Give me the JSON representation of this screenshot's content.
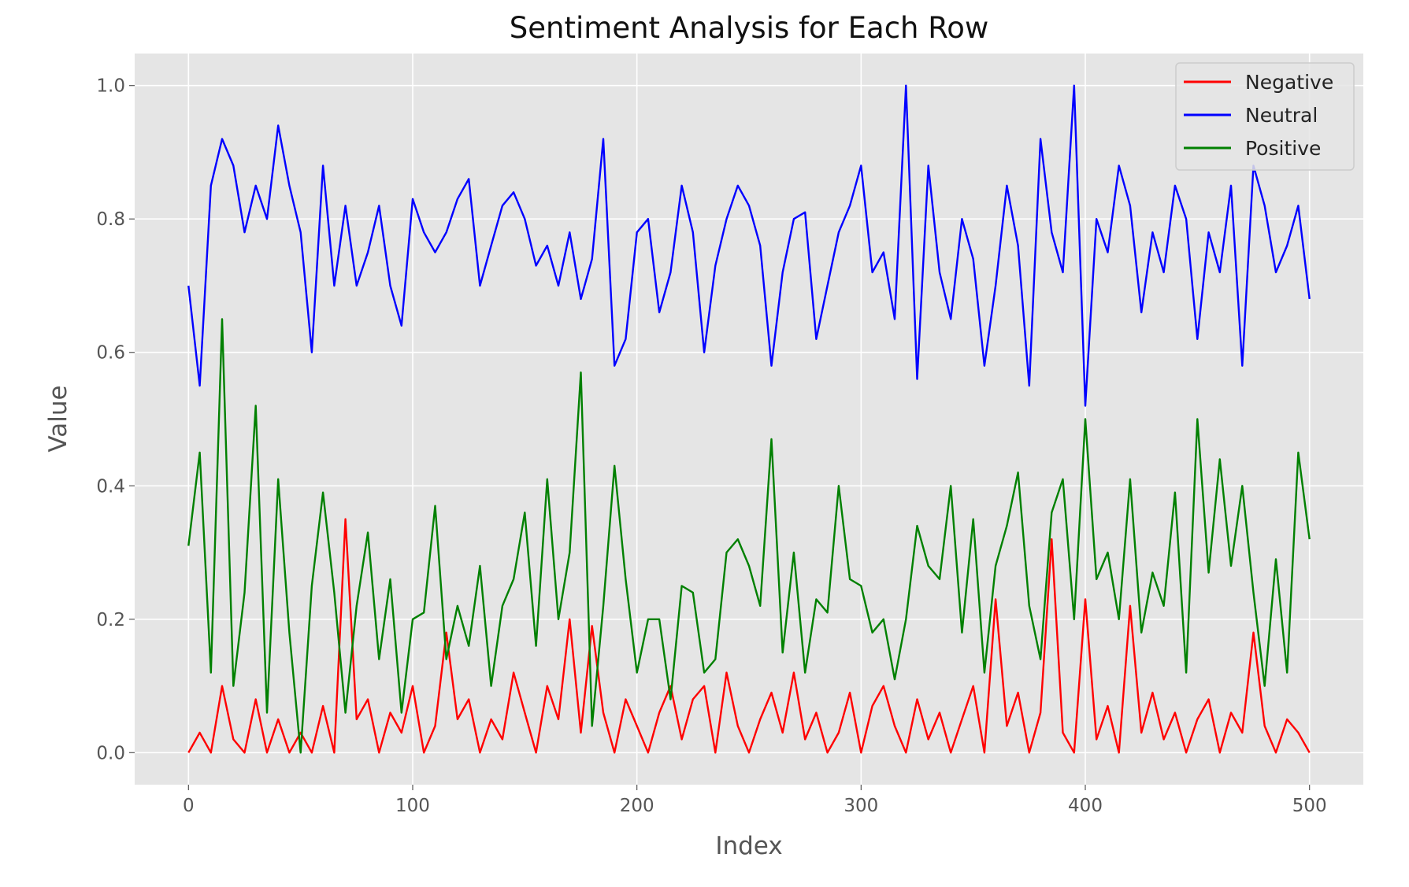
{
  "chart_data": {
    "type": "line",
    "title": "Sentiment Analysis for Each Row",
    "xlabel": "Index",
    "ylabel": "Value",
    "xlim": [
      -24,
      524
    ],
    "ylim": [
      -0.048,
      1.048
    ],
    "xticks": [
      0,
      100,
      200,
      300,
      400,
      500
    ],
    "yticks": [
      0.0,
      0.2,
      0.4,
      0.6,
      0.8,
      1.0
    ],
    "xtick_labels": [
      "0",
      "100",
      "200",
      "300",
      "400",
      "500"
    ],
    "ytick_labels": [
      "0.0",
      "0.2",
      "0.4",
      "0.6",
      "0.8",
      "1.0"
    ],
    "grid": true,
    "legend": "top-right",
    "x": {
      "start": 0,
      "step": 5
    },
    "series": [
      {
        "name": "Negative",
        "color": "#ff0000",
        "values": [
          0.0,
          0.03,
          0.0,
          0.1,
          0.02,
          0.0,
          0.08,
          0.0,
          0.05,
          0.0,
          0.03,
          0.0,
          0.07,
          0.0,
          0.35,
          0.05,
          0.08,
          0.0,
          0.06,
          0.03,
          0.1,
          0.0,
          0.04,
          0.18,
          0.05,
          0.08,
          0.0,
          0.05,
          0.02,
          0.12,
          0.06,
          0.0,
          0.1,
          0.05,
          0.2,
          0.03,
          0.19,
          0.06,
          0.0,
          0.08,
          0.04,
          0.0,
          0.06,
          0.1,
          0.02,
          0.08,
          0.1,
          0.0,
          0.12,
          0.04,
          0.0,
          0.05,
          0.09,
          0.03,
          0.12,
          0.02,
          0.06,
          0.0,
          0.03,
          0.09,
          0.0,
          0.07,
          0.1,
          0.04,
          0.0,
          0.08,
          0.02,
          0.06,
          0.0,
          0.05,
          0.1,
          0.0,
          0.23,
          0.04,
          0.09,
          0.0,
          0.06,
          0.32,
          0.03,
          0.0,
          0.23,
          0.02,
          0.07,
          0.0,
          0.22,
          0.03,
          0.09,
          0.02,
          0.06,
          0.0,
          0.05,
          0.08,
          0.0,
          0.06,
          0.03,
          0.18,
          0.04,
          0.0,
          0.05,
          0.03,
          0.0
        ]
      },
      {
        "name": "Neutral",
        "color": "#0000ff",
        "values": [
          0.7,
          0.55,
          0.85,
          0.92,
          0.88,
          0.78,
          0.85,
          0.8,
          0.94,
          0.85,
          0.78,
          0.6,
          0.88,
          0.7,
          0.82,
          0.7,
          0.75,
          0.82,
          0.7,
          0.64,
          0.83,
          0.78,
          0.75,
          0.78,
          0.83,
          0.86,
          0.7,
          0.76,
          0.82,
          0.84,
          0.8,
          0.73,
          0.76,
          0.7,
          0.78,
          0.68,
          0.74,
          0.92,
          0.58,
          0.62,
          0.78,
          0.8,
          0.66,
          0.72,
          0.85,
          0.78,
          0.6,
          0.73,
          0.8,
          0.85,
          0.82,
          0.76,
          0.58,
          0.72,
          0.8,
          0.81,
          0.62,
          0.7,
          0.78,
          0.82,
          0.88,
          0.72,
          0.75,
          0.65,
          1.0,
          0.56,
          0.88,
          0.72,
          0.65,
          0.8,
          0.74,
          0.58,
          0.7,
          0.85,
          0.76,
          0.55,
          0.92,
          0.78,
          0.72,
          1.0,
          0.52,
          0.8,
          0.75,
          0.88,
          0.82,
          0.66,
          0.78,
          0.72,
          0.85,
          0.8,
          0.62,
          0.78,
          0.72,
          0.85,
          0.58,
          0.88,
          0.82,
          0.72,
          0.76,
          0.82,
          0.68
        ]
      },
      {
        "name": "Positive",
        "color": "#008000",
        "values": [
          0.31,
          0.45,
          0.12,
          0.65,
          0.1,
          0.24,
          0.52,
          0.06,
          0.41,
          0.18,
          0.0,
          0.25,
          0.39,
          0.24,
          0.06,
          0.22,
          0.33,
          0.14,
          0.26,
          0.06,
          0.2,
          0.21,
          0.37,
          0.14,
          0.22,
          0.16,
          0.28,
          0.1,
          0.22,
          0.26,
          0.36,
          0.16,
          0.41,
          0.2,
          0.3,
          0.57,
          0.04,
          0.22,
          0.43,
          0.26,
          0.12,
          0.2,
          0.2,
          0.08,
          0.25,
          0.24,
          0.12,
          0.14,
          0.3,
          0.32,
          0.28,
          0.22,
          0.47,
          0.15,
          0.3,
          0.12,
          0.23,
          0.21,
          0.4,
          0.26,
          0.25,
          0.18,
          0.2,
          0.11,
          0.2,
          0.34,
          0.28,
          0.26,
          0.4,
          0.18,
          0.35,
          0.12,
          0.28,
          0.34,
          0.42,
          0.22,
          0.14,
          0.36,
          0.41,
          0.2,
          0.5,
          0.26,
          0.3,
          0.2,
          0.41,
          0.18,
          0.27,
          0.22,
          0.39,
          0.12,
          0.5,
          0.27,
          0.44,
          0.28,
          0.4,
          0.24,
          0.1,
          0.29,
          0.12,
          0.45,
          0.32
        ]
      }
    ]
  }
}
